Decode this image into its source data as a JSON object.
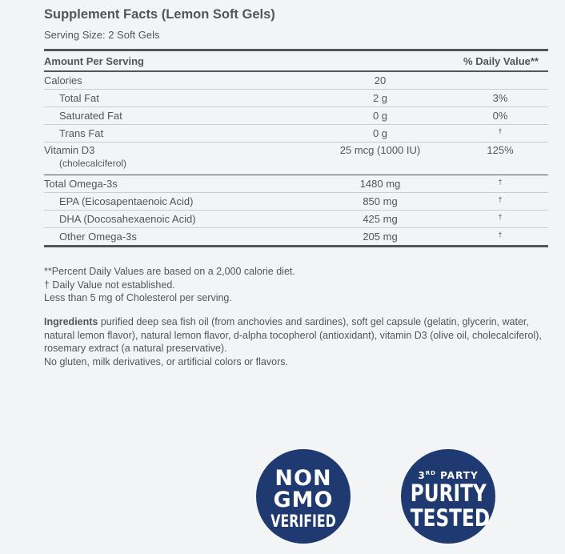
{
  "title": "Supplement Facts (Lemon Soft Gels)",
  "serving_size": "Serving Size: 2 Soft Gels",
  "table": {
    "header": {
      "amount": "Amount Per Serving",
      "dv": "% Daily Value**"
    },
    "rows": [
      {
        "name": "Calories",
        "amount": "20",
        "dv": ""
      },
      {
        "name": "Total Fat",
        "amount": "2 g",
        "dv": "3%"
      },
      {
        "name": "Saturated Fat",
        "amount": "0 g",
        "dv": "0%"
      },
      {
        "name": "Trans Fat",
        "amount": "0 g",
        "dv": "†"
      },
      {
        "name": "Vitamin D3",
        "sub": "(cholecalciferol)",
        "amount": "25 mcg (1000 IU)",
        "dv": "125%"
      },
      {
        "name": "Total Omega-3s",
        "amount": "1480 mg",
        "dv": "†"
      },
      {
        "name": "EPA (Eicosapentaenoic Acid)",
        "amount": "850 mg",
        "dv": "†"
      },
      {
        "name": "DHA (Docosahexaenoic Acid)",
        "amount": "425 mg",
        "dv": "†"
      },
      {
        "name": "Other Omega-3s",
        "amount": "205 mg",
        "dv": "†"
      }
    ]
  },
  "notes": [
    "**Percent Daily Values are based on a 2,000 calorie diet.",
    "† Daily Value not established.",
    "Less than 5 mg of Cholesterol per serving."
  ],
  "ingredients": {
    "label": "Ingredients",
    "text": " purified deep sea fish oil (from anchovies and sardines), soft gel capsule (gelatin, glycerin, water, natural lemon flavor), natural lemon flavor, d-alpha tocopherol (antioxidant), vitamin D3 (olive oil, cholecalciferol), rosemary extract (a natural preservative).",
    "extra": "No gluten, milk derivatives, or artificial colors or flavors."
  },
  "badges": {
    "non_gmo": [
      "NON",
      "GMO",
      "VERIFIED"
    ],
    "purity": {
      "top_num": "3",
      "top_sup": "RD",
      "top_rest": " PARTY",
      "l2": "PURITY",
      "l3": "TESTED"
    }
  },
  "colors": {
    "badge": "#1e3a70",
    "text": "#555555",
    "background": "#f3f4f6"
  }
}
